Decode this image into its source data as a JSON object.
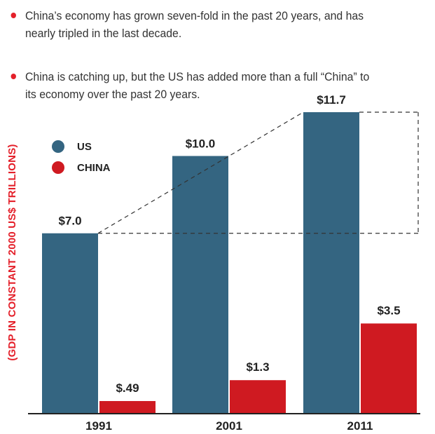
{
  "bullets": [
    {
      "line1": "China’s economy has grown seven-fold in the past 20 years, and has",
      "line2": "nearly tripled in the last decade."
    },
    {
      "line1": "China is catching up, but the US has added more than a full “China” to",
      "line2": "its economy over the past 20 years."
    }
  ],
  "colors": {
    "us": "#346581",
    "china": "#cf1a21",
    "accent": "#e4202a"
  },
  "chart_data": {
    "type": "bar",
    "categories": [
      "1991",
      "2001",
      "2011"
    ],
    "series": [
      {
        "name": "US",
        "values": [
          7.0,
          10.0,
          11.7
        ],
        "labels": [
          "$7.0",
          "$10.0",
          "$11.7"
        ]
      },
      {
        "name": "CHINA",
        "values": [
          0.49,
          1.3,
          3.5
        ],
        "labels": [
          "$.49",
          "$1.3",
          "$3.5"
        ]
      }
    ],
    "ylabel": "(GDP IN CONSTANT 2000 US$ TRILLIONS)",
    "xlabel": "",
    "ylim": [
      0,
      11.7
    ],
    "legend_position": "top-left",
    "grid": false,
    "annotation": "dashed outline comparing 1991 US GDP to 2011 US GDP"
  }
}
